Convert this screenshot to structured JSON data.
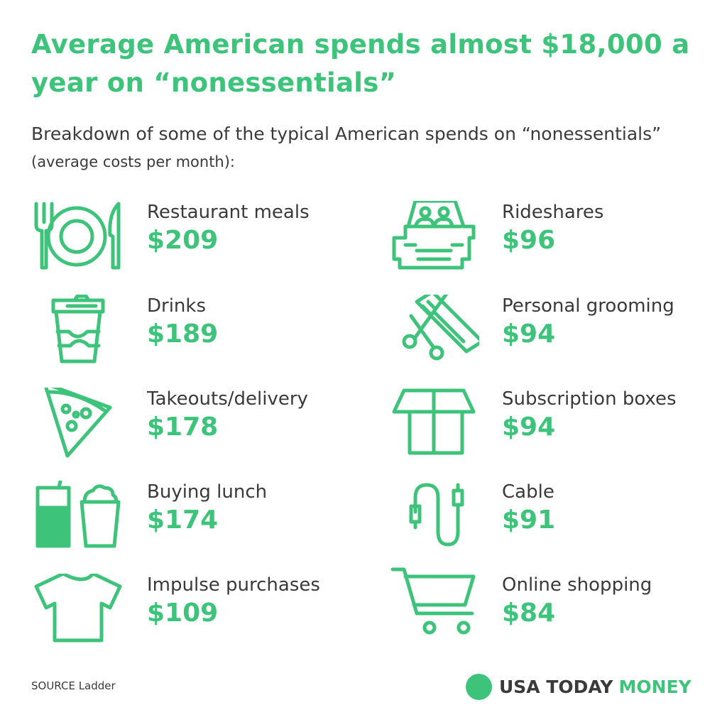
{
  "title": "Average American spends almost $18,000 a year on “nonessentials”",
  "subtitle": {
    "main": "Breakdown of some of the typical American spends on “nonessentials”",
    "note": "(average costs per month):"
  },
  "accent_color": "#3dc37a",
  "items_left": [
    {
      "icon": "plate-fork-knife-icon",
      "label": "Restaurant meals",
      "value": "$209"
    },
    {
      "icon": "coffee-cup-icon",
      "label": "Drinks",
      "value": "$189"
    },
    {
      "icon": "pizza-slice-icon",
      "label": "Takeouts/delivery",
      "value": "$178"
    },
    {
      "icon": "drink-and-fries-icon",
      "label": "Buying lunch",
      "value": "$174"
    },
    {
      "icon": "t-shirt-icon",
      "label": "Impulse purchases",
      "value": "$109"
    }
  ],
  "items_right": [
    {
      "icon": "car-icon",
      "label": "Rideshares",
      "value": "$96"
    },
    {
      "icon": "comb-scissors-icon",
      "label": "Personal grooming",
      "value": "$94"
    },
    {
      "icon": "open-box-icon",
      "label": "Subscription boxes",
      "value": "$94"
    },
    {
      "icon": "cable-icon",
      "label": "Cable",
      "value": "$91"
    },
    {
      "icon": "shopping-cart-icon",
      "label": "Online shopping",
      "value": "$84"
    }
  ],
  "source": "SOURCE Ladder",
  "logo": {
    "part1": "USA TODAY",
    "part2": "MONEY"
  }
}
